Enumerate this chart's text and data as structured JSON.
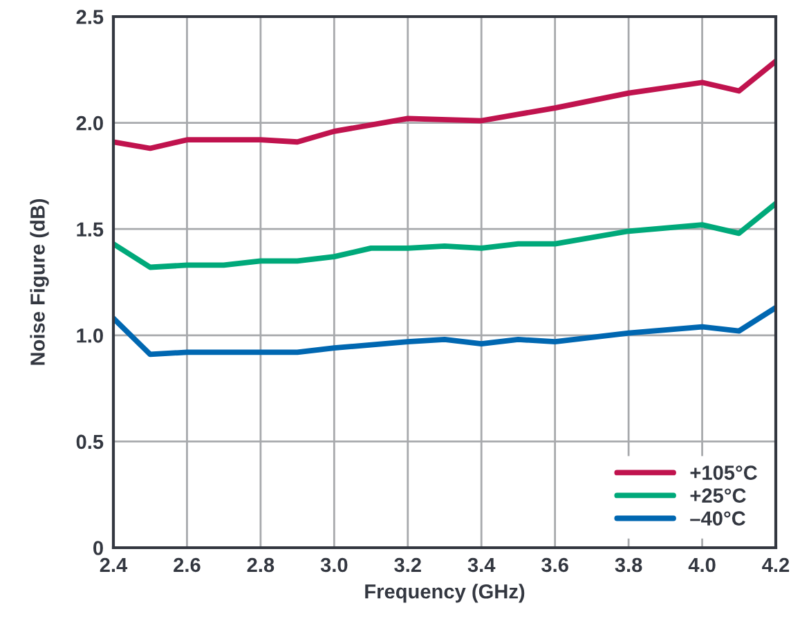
{
  "chart_data": {
    "type": "line",
    "xlabel": "Frequency (GHz)",
    "ylabel": "Noise Figure (dB)",
    "xlim": [
      2.4,
      4.2
    ],
    "ylim": [
      0,
      2.5
    ],
    "xticks": [
      2.4,
      2.6,
      2.8,
      {
        "value": 3.0,
        "label": "3.0"
      },
      3.2,
      3.4,
      3.6,
      3.8,
      {
        "value": 4.0,
        "label": "4.0"
      },
      4.2
    ],
    "yticks": [
      0,
      0.5,
      {
        "value": 1.0,
        "label": "1.0"
      },
      1.5,
      {
        "value": 2.0,
        "label": "2.0"
      },
      2.5
    ],
    "grid": true,
    "legend": "bottom right",
    "line_style": "solid",
    "marker": "none",
    "series": [
      {
        "name": "+105°C",
        "color": "#c0134e",
        "x": [
          2.4,
          2.5,
          2.6,
          2.8,
          2.9,
          3.0,
          3.2,
          3.4,
          3.6,
          3.8,
          4.0,
          4.1,
          4.2
        ],
        "values": [
          1.91,
          1.88,
          1.92,
          1.92,
          1.91,
          1.96,
          2.02,
          2.01,
          2.07,
          2.14,
          2.19,
          2.15,
          2.29
        ]
      },
      {
        "name": "+25°C",
        "color": "#00a97a",
        "x": [
          2.4,
          2.5,
          2.6,
          2.7,
          2.8,
          2.9,
          3.0,
          3.1,
          3.2,
          3.3,
          3.4,
          3.5,
          3.6,
          3.8,
          4.0,
          4.1,
          4.2
        ],
        "values": [
          1.43,
          1.32,
          1.33,
          1.33,
          1.35,
          1.35,
          1.37,
          1.41,
          1.41,
          1.42,
          1.41,
          1.43,
          1.43,
          1.49,
          1.52,
          1.48,
          1.62
        ]
      },
      {
        "name": "–40°C",
        "color": "#0067b1",
        "x": [
          2.4,
          2.5,
          2.6,
          2.8,
          2.9,
          3.0,
          3.2,
          3.3,
          3.4,
          3.5,
          3.6,
          3.8,
          4.0,
          4.1,
          4.2
        ],
        "values": [
          1.08,
          0.91,
          0.92,
          0.92,
          0.92,
          0.94,
          0.97,
          0.98,
          0.96,
          0.98,
          0.97,
          1.01,
          1.04,
          1.02,
          1.13
        ]
      }
    ]
  }
}
